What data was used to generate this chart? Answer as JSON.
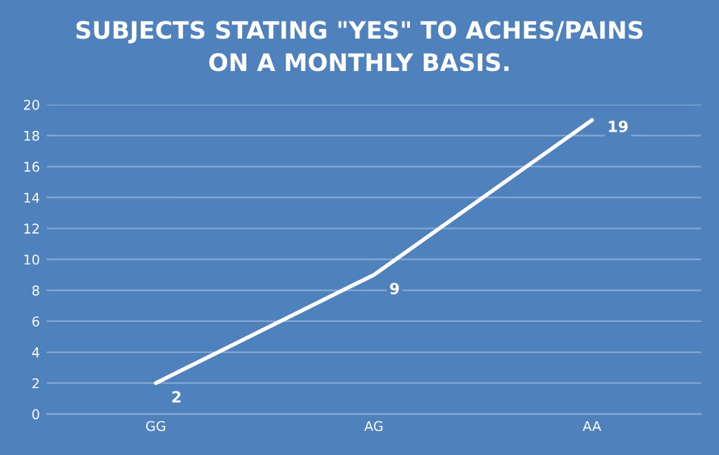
{
  "chart_data": {
    "type": "line",
    "title": "SUBJECTS STATING \"YES\" TO ACHES/PAINS\nON A MONTHLY BASIS.",
    "categories": [
      "GG",
      "AG",
      "AA"
    ],
    "series": [
      {
        "color": "#ffffff",
        "values": [
          2,
          9,
          19
        ]
      }
    ],
    "ylim": [
      0,
      20
    ],
    "yticks": [
      0,
      2,
      4,
      6,
      8,
      10,
      12,
      14,
      16,
      18,
      20
    ],
    "grid": "y",
    "data_labels": true,
    "marker": "none",
    "line_style": "solid",
    "legend": false
  }
}
